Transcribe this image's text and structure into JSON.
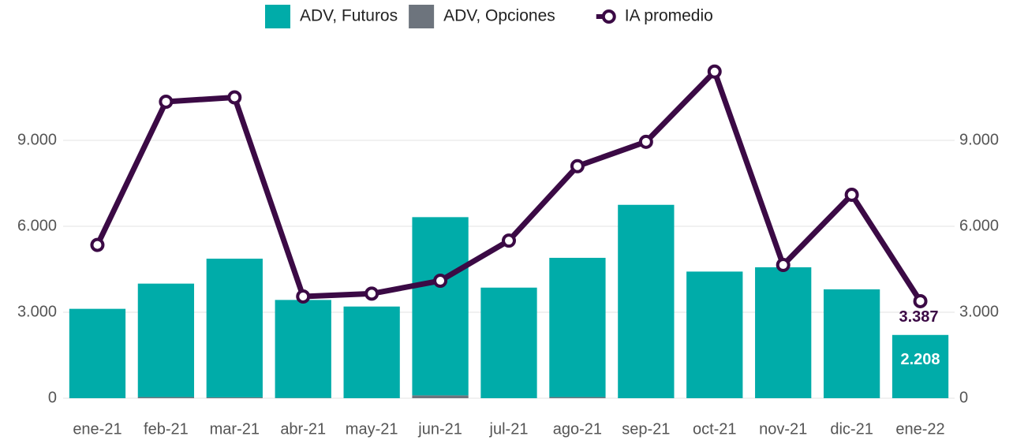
{
  "chart_data": {
    "type": "bar",
    "categories": [
      "ene-21",
      "feb-21",
      "mar-21",
      "abr-21",
      "may-21",
      "jun-21",
      "jul-21",
      "ago-21",
      "sep-21",
      "oct-21",
      "nov-21",
      "dic-21",
      "ene-22"
    ],
    "series": [
      {
        "name": "ADV, Opciones",
        "type": "bar",
        "color": "#6d747d",
        "values": [
          0,
          40,
          30,
          10,
          0,
          100,
          0,
          40,
          0,
          0,
          0,
          0,
          0
        ]
      },
      {
        "name": "ADV, Futuros",
        "type": "bar",
        "color": "#00aca9",
        "values": [
          3120,
          3960,
          4840,
          3420,
          3200,
          6220,
          3860,
          4860,
          6750,
          4420,
          4570,
          3800,
          2208
        ],
        "value_labels": [
          null,
          null,
          null,
          null,
          null,
          null,
          null,
          null,
          null,
          null,
          null,
          null,
          "2.208"
        ]
      },
      {
        "name": "IA promedio",
        "type": "line",
        "axis": "y2",
        "color": "#3b0a45",
        "values": [
          5350,
          10350,
          10500,
          3550,
          3650,
          4100,
          5500,
          8100,
          8950,
          11400,
          4650,
          7100,
          3387
        ],
        "value_labels": [
          null,
          null,
          null,
          null,
          null,
          null,
          null,
          null,
          null,
          null,
          null,
          null,
          "3.387"
        ]
      }
    ],
    "legend_order": [
      1,
      0,
      2
    ],
    "legend": "top",
    "grid": true,
    "ylim": [
      0,
      12000
    ],
    "yticks": [
      0,
      {
        "value": 3000,
        "label": "3.000"
      },
      {
        "value": 6000,
        "label": "6.000"
      },
      {
        "value": 9000,
        "label": "9.000"
      }
    ],
    "y2lim": [
      0,
      12000
    ],
    "y2ticks": [
      0,
      {
        "value": 3000,
        "label": "3.000"
      },
      {
        "value": 6000,
        "label": "6.000"
      },
      {
        "value": 9000,
        "label": "9.000"
      }
    ]
  }
}
